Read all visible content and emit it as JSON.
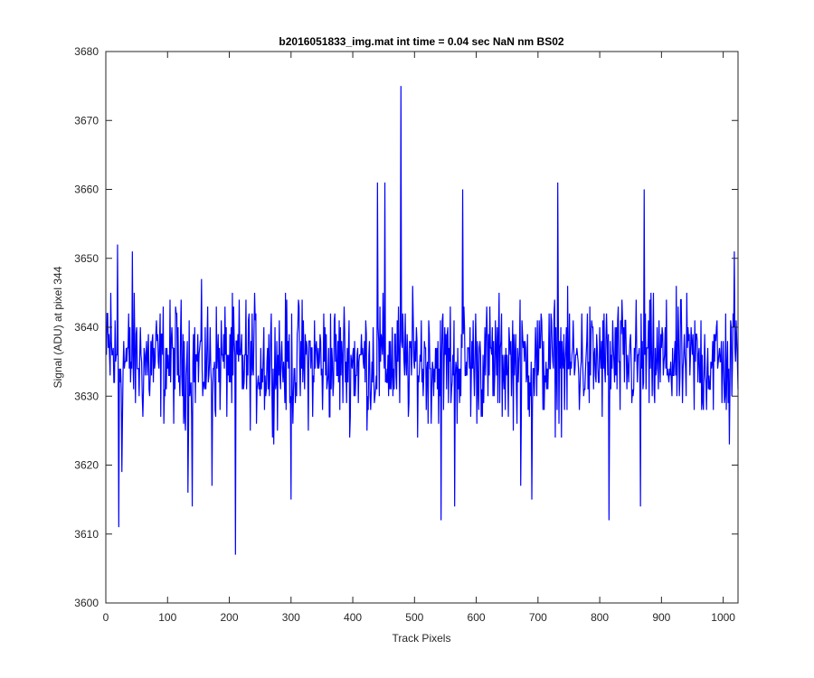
{
  "chart_data": {
    "type": "line",
    "title": "b2016051833_img.mat int time = 0.04 sec  NaN nm BS02",
    "xlabel": "Track Pixels",
    "ylabel": "Signal (ADU) at pixel 344",
    "xlim": [
      0,
      1024
    ],
    "ylim": [
      3600,
      3680
    ],
    "xticks": [
      0,
      100,
      200,
      300,
      400,
      500,
      600,
      700,
      800,
      900,
      1000
    ],
    "yticks": [
      3600,
      3610,
      3620,
      3630,
      3640,
      3650,
      3660,
      3670,
      3680
    ],
    "grid": false,
    "legend": "none",
    "series": [
      {
        "color": "#0000ff",
        "x_start": 1,
        "x_step": 1,
        "n_points": 1024,
        "baseline": 3635,
        "noise_range": [
          3622,
          3648
        ],
        "notable_points": [
          [
            3,
            3642
          ],
          [
            8,
            3645
          ],
          [
            19,
            3652
          ],
          [
            21,
            3611
          ],
          [
            26,
            3619
          ],
          [
            43,
            3651
          ],
          [
            133,
            3616
          ],
          [
            140,
            3614
          ],
          [
            172,
            3617
          ],
          [
            210,
            3607
          ],
          [
            300,
            3615
          ],
          [
            440,
            3661
          ],
          [
            452,
            3661
          ],
          [
            478,
            3675
          ],
          [
            543,
            3612
          ],
          [
            565,
            3614
          ],
          [
            578,
            3660
          ],
          [
            672,
            3617
          ],
          [
            690,
            3615
          ],
          [
            732,
            3661
          ],
          [
            815,
            3612
          ],
          [
            866,
            3614
          ],
          [
            872,
            3660
          ],
          [
            1010,
            3623
          ],
          [
            1018,
            3651
          ]
        ]
      }
    ]
  }
}
